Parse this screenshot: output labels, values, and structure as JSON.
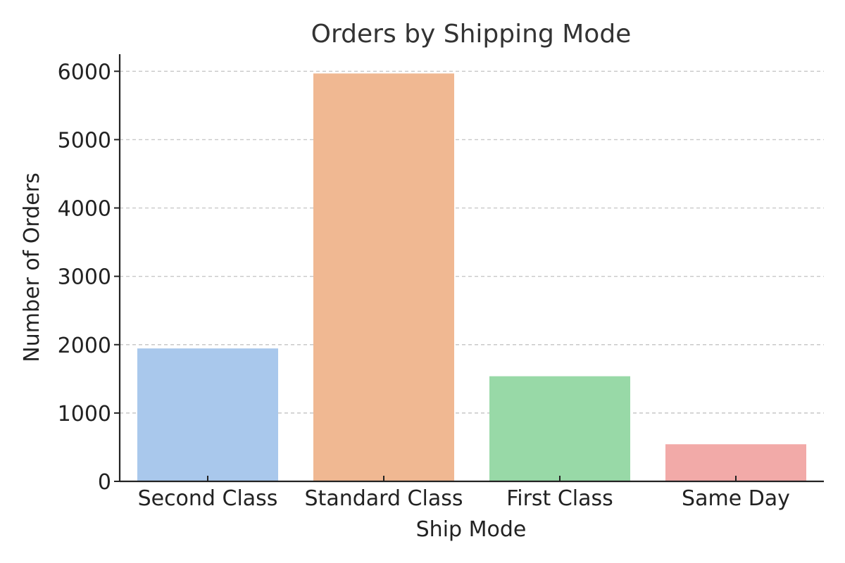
{
  "chart_data": {
    "type": "bar",
    "title": "Orders by Shipping Mode",
    "xlabel": "Ship Mode",
    "ylabel": "Number of Orders",
    "categories": [
      "Second Class",
      "Standard Class",
      "First Class",
      "Same Day"
    ],
    "values": [
      1945,
      5968,
      1538,
      543
    ],
    "colors": [
      "#a9c8ec",
      "#f0b892",
      "#98d9a7",
      "#f2aaa8"
    ],
    "ylim": [
      0,
      6250
    ],
    "yticks": [
      0,
      1000,
      2000,
      3000,
      4000,
      5000,
      6000
    ],
    "ytick_labels": [
      "0",
      "1000",
      "2000",
      "3000",
      "4000",
      "5000",
      "6000"
    ],
    "grid": true,
    "legend": false
  }
}
